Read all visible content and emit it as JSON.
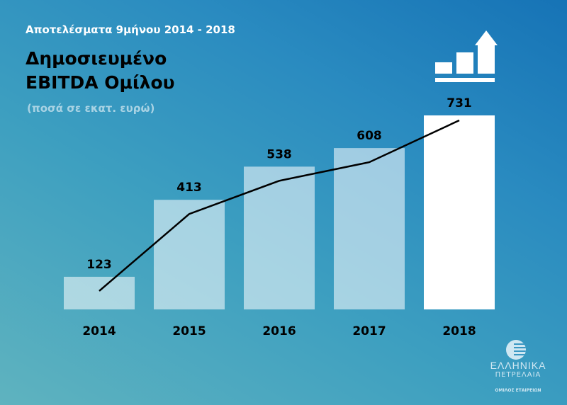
{
  "header": {
    "subtitle": "Αποτελέσματα 9μήνου 2014 - 2018",
    "title_line1": "Δημοσιευμένο",
    "title_line2": "EBITDA Ομίλου",
    "unit": "(ποσά σε εκατ. ευρώ)"
  },
  "chart_data": {
    "type": "bar",
    "title": "Δημοσιευμένο EBITDA Ομίλου",
    "ylabel": "(ποσά σε εκατ. ευρώ)",
    "categories": [
      "2014",
      "2015",
      "2016",
      "2017",
      "2018"
    ],
    "values": [
      123,
      413,
      538,
      608,
      731
    ],
    "data_labels": [
      "123",
      "413",
      "538",
      "608",
      "731"
    ],
    "ylim": [
      0,
      731
    ],
    "trend_line": true,
    "grid": false,
    "colors": {
      "bar": "#ffffff",
      "bar_opacity": 0.55,
      "highlight_bar": "#ffffff",
      "line": "#000000"
    }
  },
  "icons": {
    "top_right": "bar-chart-growth-icon",
    "logo": "globe-logo-icon"
  },
  "logo": {
    "line1": "ΕΛΛΗΝΙΚΑ",
    "line2": "ΠΕΤΡΕΛΑΙΑ",
    "line3": "ΟΜΙΛΟΣ ΕΤΑΙΡΕΙΩΝ"
  }
}
